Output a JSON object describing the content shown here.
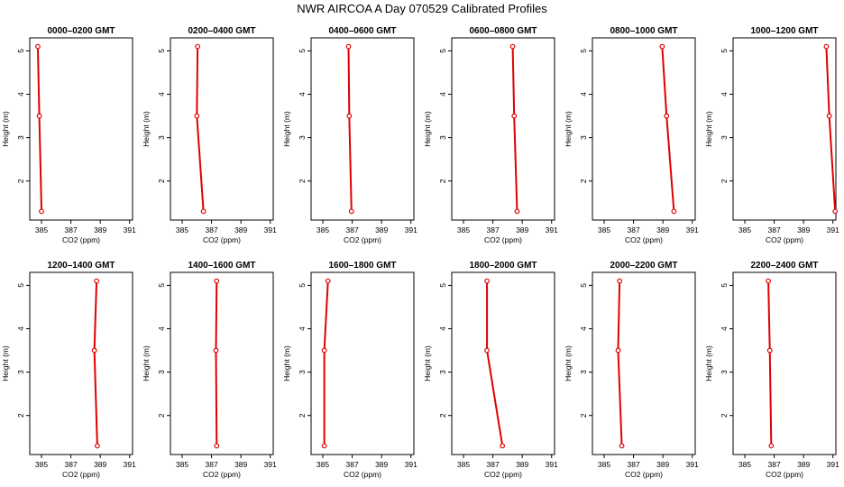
{
  "title": "NWR AIRCOA A  Day 070529  Calibrated Profiles",
  "colors": {
    "series": "#e00000",
    "axis": "#000000"
  },
  "chart_data": [
    {
      "type": "line",
      "title": "0000–0200 GMT",
      "xlabel": "CO2 (ppm)",
      "ylabel": "Height (m)",
      "xlim": [
        384.2,
        391.2
      ],
      "ylim": [
        1.1,
        5.3
      ],
      "xticks": [
        385,
        387,
        389,
        391
      ],
      "yticks": [
        2,
        3,
        4,
        5
      ],
      "series": [
        {
          "x": [
            384.75,
            384.85,
            385.0
          ],
          "y": [
            5.1,
            3.5,
            1.3
          ]
        }
      ]
    },
    {
      "type": "line",
      "title": "0200–0400 GMT",
      "xlabel": "CO2 (ppm)",
      "ylabel": "Height (m)",
      "xlim": [
        384.2,
        391.2
      ],
      "ylim": [
        1.1,
        5.3
      ],
      "xticks": [
        385,
        387,
        389,
        391
      ],
      "yticks": [
        2,
        3,
        4,
        5
      ],
      "series": [
        {
          "x": [
            386.05,
            386.0,
            386.45
          ],
          "y": [
            5.1,
            3.5,
            1.3
          ]
        }
      ]
    },
    {
      "type": "line",
      "title": "0400–0600 GMT",
      "xlabel": "CO2 (ppm)",
      "ylabel": "Height (m)",
      "xlim": [
        384.2,
        391.2
      ],
      "ylim": [
        1.1,
        5.3
      ],
      "xticks": [
        385,
        387,
        389,
        391
      ],
      "yticks": [
        2,
        3,
        4,
        5
      ],
      "series": [
        {
          "x": [
            386.75,
            386.8,
            386.95
          ],
          "y": [
            5.1,
            3.5,
            1.3
          ]
        }
      ]
    },
    {
      "type": "line",
      "title": "0600–0800 GMT",
      "xlabel": "CO2 (ppm)",
      "ylabel": "Height (m)",
      "xlim": [
        384.2,
        391.2
      ],
      "ylim": [
        1.1,
        5.3
      ],
      "xticks": [
        385,
        387,
        389,
        391
      ],
      "yticks": [
        2,
        3,
        4,
        5
      ],
      "series": [
        {
          "x": [
            388.35,
            388.45,
            388.65
          ],
          "y": [
            5.1,
            3.5,
            1.3
          ]
        }
      ]
    },
    {
      "type": "line",
      "title": "0800–1000 GMT",
      "xlabel": "CO2 (ppm)",
      "ylabel": "Height (m)",
      "xlim": [
        384.2,
        391.2
      ],
      "ylim": [
        1.1,
        5.3
      ],
      "xticks": [
        385,
        387,
        389,
        391
      ],
      "yticks": [
        2,
        3,
        4,
        5
      ],
      "series": [
        {
          "x": [
            388.95,
            389.25,
            389.75
          ],
          "y": [
            5.1,
            3.5,
            1.3
          ]
        }
      ]
    },
    {
      "type": "line",
      "title": "1000–1200 GMT",
      "xlabel": "CO2 (ppm)",
      "ylabel": "Height (m)",
      "xlim": [
        384.2,
        391.2
      ],
      "ylim": [
        1.1,
        5.3
      ],
      "xticks": [
        385,
        387,
        389,
        391
      ],
      "yticks": [
        2,
        3,
        4,
        5
      ],
      "series": [
        {
          "x": [
            390.55,
            390.75,
            391.15
          ],
          "y": [
            5.1,
            3.5,
            1.3
          ]
        }
      ]
    },
    {
      "type": "line",
      "title": "1200–1400 GMT",
      "xlabel": "CO2 (ppm)",
      "ylabel": "Height (m)",
      "xlim": [
        384.2,
        391.2
      ],
      "ylim": [
        1.1,
        5.3
      ],
      "xticks": [
        385,
        387,
        389,
        391
      ],
      "yticks": [
        2,
        3,
        4,
        5
      ],
      "series": [
        {
          "x": [
            388.75,
            388.6,
            388.8
          ],
          "y": [
            5.1,
            3.5,
            1.3
          ]
        }
      ]
    },
    {
      "type": "line",
      "title": "1400–1600 GMT",
      "xlabel": "CO2 (ppm)",
      "ylabel": "Height (m)",
      "xlim": [
        384.2,
        391.2
      ],
      "ylim": [
        1.1,
        5.3
      ],
      "xticks": [
        385,
        387,
        389,
        391
      ],
      "yticks": [
        2,
        3,
        4,
        5
      ],
      "series": [
        {
          "x": [
            387.35,
            387.3,
            387.35
          ],
          "y": [
            5.1,
            3.5,
            1.3
          ]
        }
      ]
    },
    {
      "type": "line",
      "title": "1600–1800 GMT",
      "xlabel": "CO2 (ppm)",
      "ylabel": "Height (m)",
      "xlim": [
        384.2,
        391.2
      ],
      "ylim": [
        1.1,
        5.3
      ],
      "xticks": [
        385,
        387,
        389,
        391
      ],
      "yticks": [
        2,
        3,
        4,
        5
      ],
      "series": [
        {
          "x": [
            385.35,
            385.1,
            385.1
          ],
          "y": [
            5.1,
            3.5,
            1.3
          ]
        }
      ]
    },
    {
      "type": "line",
      "title": "1800–2000 GMT",
      "xlabel": "CO2 (ppm)",
      "ylabel": "Height (m)",
      "xlim": [
        384.2,
        391.2
      ],
      "ylim": [
        1.1,
        5.3
      ],
      "xticks": [
        385,
        387,
        389,
        391
      ],
      "yticks": [
        2,
        3,
        4,
        5
      ],
      "series": [
        {
          "x": [
            386.6,
            386.6,
            387.65
          ],
          "y": [
            5.1,
            3.5,
            1.3
          ]
        }
      ]
    },
    {
      "type": "line",
      "title": "2000–2200 GMT",
      "xlabel": "CO2 (ppm)",
      "ylabel": "Height (m)",
      "xlim": [
        384.2,
        391.2
      ],
      "ylim": [
        1.1,
        5.3
      ],
      "xticks": [
        385,
        387,
        389,
        391
      ],
      "yticks": [
        2,
        3,
        4,
        5
      ],
      "series": [
        {
          "x": [
            386.05,
            385.95,
            386.2
          ],
          "y": [
            5.1,
            3.5,
            1.3
          ]
        }
      ]
    },
    {
      "type": "line",
      "title": "2200–2400 GMT",
      "xlabel": "CO2 (ppm)",
      "ylabel": "Height (m)",
      "xlim": [
        384.2,
        391.2
      ],
      "ylim": [
        1.1,
        5.3
      ],
      "xticks": [
        385,
        387,
        389,
        391
      ],
      "yticks": [
        2,
        3,
        4,
        5
      ],
      "series": [
        {
          "x": [
            386.6,
            386.7,
            386.8
          ],
          "y": [
            5.1,
            3.5,
            1.3
          ]
        }
      ]
    }
  ]
}
